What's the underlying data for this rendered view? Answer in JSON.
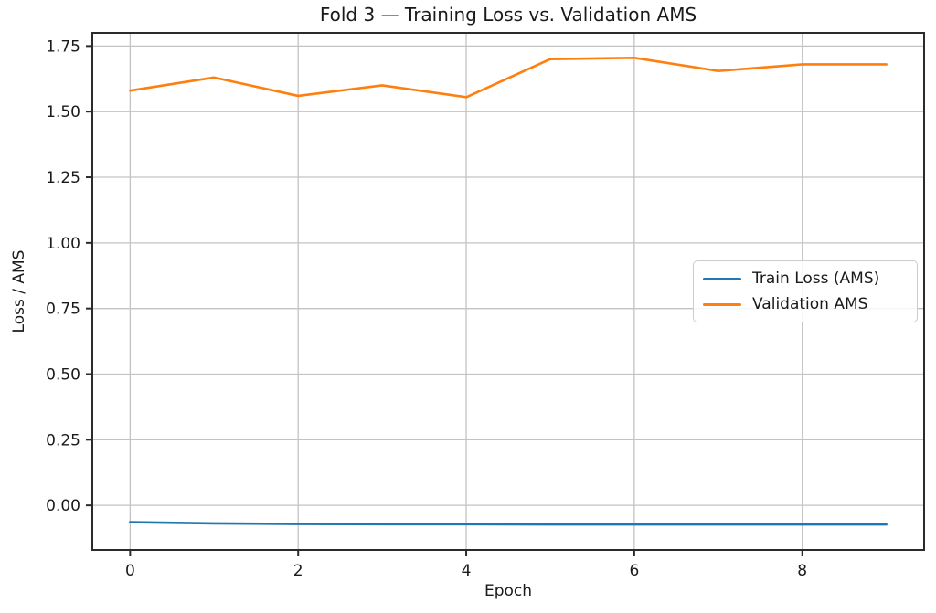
{
  "figure": {
    "background": "#ffffff",
    "text_color": "#1a1a1a",
    "spine_color": "#2b2b2b",
    "grid_color": "#c3c3c3"
  },
  "chart_data": {
    "type": "line",
    "title": "Fold 3 — Training Loss vs. Validation AMS",
    "xlabel": "Epoch",
    "ylabel": "Loss / AMS",
    "x": [
      0,
      1,
      2,
      3,
      4,
      5,
      6,
      7,
      8,
      9
    ],
    "series": [
      {
        "name": "Train Loss (AMS)",
        "color": "#1f77b4",
        "values": [
          -0.064,
          -0.069,
          -0.071,
          -0.072,
          -0.072,
          -0.073,
          -0.073,
          -0.073,
          -0.073,
          -0.073
        ]
      },
      {
        "name": "Validation AMS",
        "color": "#ff7f0e",
        "values": [
          1.58,
          1.63,
          1.56,
          1.6,
          1.555,
          1.7,
          1.705,
          1.655,
          1.68,
          1.68
        ]
      }
    ],
    "xlim": [
      -0.45,
      9.45
    ],
    "ylim": [
      -0.17,
      1.8
    ],
    "x_ticks": [
      0,
      2,
      4,
      6,
      8
    ],
    "x_tick_labels": [
      "0",
      "2",
      "4",
      "6",
      "8"
    ],
    "y_ticks": [
      0.0,
      0.25,
      0.5,
      0.75,
      1.0,
      1.25,
      1.5,
      1.75
    ],
    "y_tick_labels": [
      "0.00",
      "0.25",
      "0.50",
      "0.75",
      "1.00",
      "1.25",
      "1.50",
      "1.75"
    ],
    "grid": true,
    "legend_position": "right"
  }
}
